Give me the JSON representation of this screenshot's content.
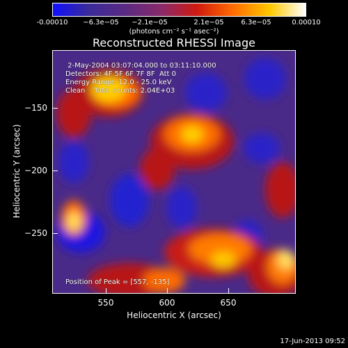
{
  "colorbar": {
    "ticks": [
      "-0.00010",
      "−6.3e−05",
      "−2.1e−05",
      "2.1e−05",
      "6.3e−05",
      "0.00010"
    ],
    "units": "(photons cm⁻² s⁻¹ asec⁻²)"
  },
  "title": "Reconstructed RHESSI Image",
  "annotations": {
    "time_range": " 2-May-2004 03:07:04.000 to 03:11:10.000",
    "detectors": "Detectors: 4F 5F 6F 7F 8F  Att 0",
    "energy": "Energy Range: 12.0 - 25.0 keV",
    "clean": "Clean    Total counts: 2.04E+03",
    "peak": "Position of Peak = [557, -135]"
  },
  "axes": {
    "xlabel": "Heliocentric X (arcsec)",
    "ylabel": "Heliocentric Y (arcsec)",
    "xticks": [
      "550",
      "600",
      "650"
    ],
    "yticks": [
      "−150",
      "−200",
      "−250"
    ]
  },
  "datestamp": "17-Jun-2013 09:52",
  "colors": {
    "background": "#000000",
    "colormap": [
      "#1010ff",
      "#3a2a9a",
      "#5b2a82",
      "#8a2a6a",
      "#d01a10",
      "#ff6a00",
      "#ffc800",
      "#ffffff"
    ]
  }
}
